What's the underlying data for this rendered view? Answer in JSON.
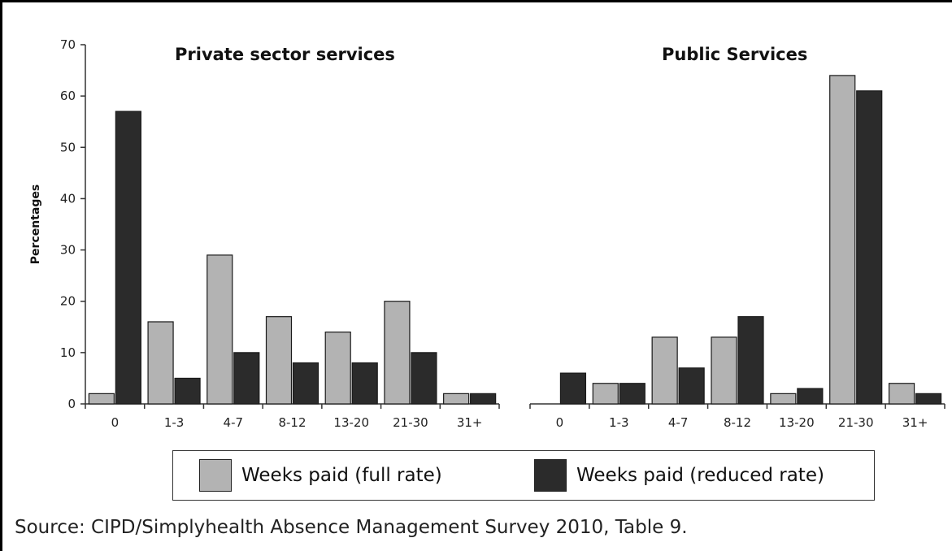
{
  "chart_data": {
    "type": "bar",
    "ylabel": "Percentages",
    "ylim": [
      0,
      70
    ],
    "yticks": [
      "0",
      "10",
      "20",
      "30",
      "40",
      "50",
      "60",
      "70"
    ],
    "grid": false,
    "legend_placement": "bottom",
    "legend": [
      {
        "name": "Weeks paid (full rate)",
        "color": "#b3b3b3"
      },
      {
        "name": "Weeks paid (reduced rate)",
        "color": "#2b2b2b"
      }
    ],
    "panels": [
      {
        "title": "Private sector services",
        "categories": [
          "0",
          "1-3",
          "4-7",
          "8-12",
          "13-20",
          "21-30",
          "31+"
        ],
        "series": [
          {
            "name": "Weeks paid (full rate)",
            "values": [
              2,
              16,
              29,
              17,
              14,
              20,
              2
            ]
          },
          {
            "name": "Weeks paid (reduced rate)",
            "values": [
              57,
              5,
              10,
              8,
              8,
              10,
              2
            ]
          }
        ]
      },
      {
        "title": "Public Services",
        "categories": [
          "0",
          "1-3",
          "4-7",
          "8-12",
          "13-20",
          "21-30",
          "31+"
        ],
        "series": [
          {
            "name": "Weeks paid (full rate)",
            "values": [
              0,
              4,
              13,
              13,
              2,
              64,
              4
            ]
          },
          {
            "name": "Weeks paid (reduced rate)",
            "values": [
              6,
              4,
              7,
              17,
              3,
              61,
              2
            ]
          }
        ]
      }
    ]
  },
  "source": "Source: CIPD/Simplyhealth Absence Management Survey 2010, Table 9."
}
